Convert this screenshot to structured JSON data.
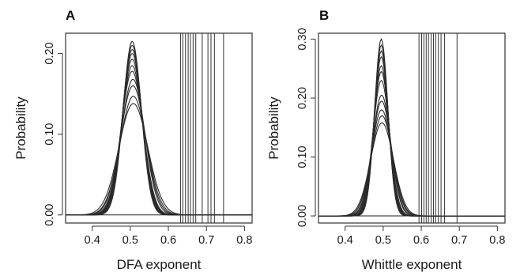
{
  "chart_data": [
    {
      "type": "line",
      "panel_label": "A",
      "xlabel": "DFA exponent",
      "ylabel": "Probability",
      "xlim": [
        0.33,
        0.82
      ],
      "ylim": [
        -0.01,
        0.225
      ],
      "x_ticks": [
        0.4,
        0.5,
        0.6,
        0.7,
        0.8
      ],
      "x_tick_labels": [
        "0.4",
        "0.5",
        "0.6",
        "0.7",
        "0.8"
      ],
      "y_ticks": [
        0.0,
        0.1,
        0.2
      ],
      "y_tick_labels": [
        "0.00",
        "0.10",
        "0.20"
      ],
      "grid": false,
      "distribution_curves": {
        "x_range": [
          0.33,
          0.82
        ],
        "series": [
          {
            "center": 0.505,
            "peak": 0.215,
            "sd": 0.024
          },
          {
            "center": 0.505,
            "peak": 0.21,
            "sd": 0.025
          },
          {
            "center": 0.505,
            "peak": 0.205,
            "sd": 0.0255
          },
          {
            "center": 0.505,
            "peak": 0.2,
            "sd": 0.026
          },
          {
            "center": 0.505,
            "peak": 0.193,
            "sd": 0.027
          },
          {
            "center": 0.505,
            "peak": 0.185,
            "sd": 0.028
          },
          {
            "center": 0.505,
            "peak": 0.178,
            "sd": 0.029
          },
          {
            "center": 0.507,
            "peak": 0.168,
            "sd": 0.031
          },
          {
            "center": 0.507,
            "peak": 0.16,
            "sd": 0.033
          },
          {
            "center": 0.508,
            "peak": 0.147,
            "sd": 0.035
          },
          {
            "center": 0.508,
            "peak": 0.138,
            "sd": 0.038
          }
        ]
      },
      "vertical_lines": [
        0.632,
        0.638,
        0.645,
        0.652,
        0.658,
        0.665,
        0.672,
        0.689,
        0.704,
        0.712,
        0.721,
        0.745
      ]
    },
    {
      "type": "line",
      "panel_label": "B",
      "xlabel": "Whittle exponent",
      "ylabel": "Probability",
      "xlim": [
        0.33,
        0.82
      ],
      "ylim": [
        -0.012,
        0.31
      ],
      "x_ticks": [
        0.4,
        0.5,
        0.6,
        0.7,
        0.8
      ],
      "x_tick_labels": [
        "0.4",
        "0.5",
        "0.6",
        "0.7",
        "0.8"
      ],
      "y_ticks": [
        0.0,
        0.1,
        0.2,
        0.3
      ],
      "y_tick_labels": [
        "0.00",
        "0.10",
        "0.20",
        "0.30"
      ],
      "grid": false,
      "distribution_curves": {
        "x_range": [
          0.33,
          0.82
        ],
        "series": [
          {
            "center": 0.495,
            "peak": 0.3,
            "sd": 0.0175
          },
          {
            "center": 0.495,
            "peak": 0.29,
            "sd": 0.018
          },
          {
            "center": 0.495,
            "peak": 0.28,
            "sd": 0.0185
          },
          {
            "center": 0.495,
            "peak": 0.27,
            "sd": 0.019
          },
          {
            "center": 0.495,
            "peak": 0.255,
            "sd": 0.02
          },
          {
            "center": 0.495,
            "peak": 0.245,
            "sd": 0.021
          },
          {
            "center": 0.495,
            "peak": 0.23,
            "sd": 0.022
          },
          {
            "center": 0.496,
            "peak": 0.205,
            "sd": 0.024
          },
          {
            "center": 0.496,
            "peak": 0.195,
            "sd": 0.025
          },
          {
            "center": 0.496,
            "peak": 0.18,
            "sd": 0.027
          },
          {
            "center": 0.497,
            "peak": 0.17,
            "sd": 0.028
          },
          {
            "center": 0.497,
            "peak": 0.158,
            "sd": 0.03
          }
        ]
      },
      "vertical_lines": [
        0.594,
        0.601,
        0.607,
        0.613,
        0.619,
        0.626,
        0.632,
        0.638,
        0.645,
        0.652,
        0.661,
        0.694
      ]
    }
  ]
}
